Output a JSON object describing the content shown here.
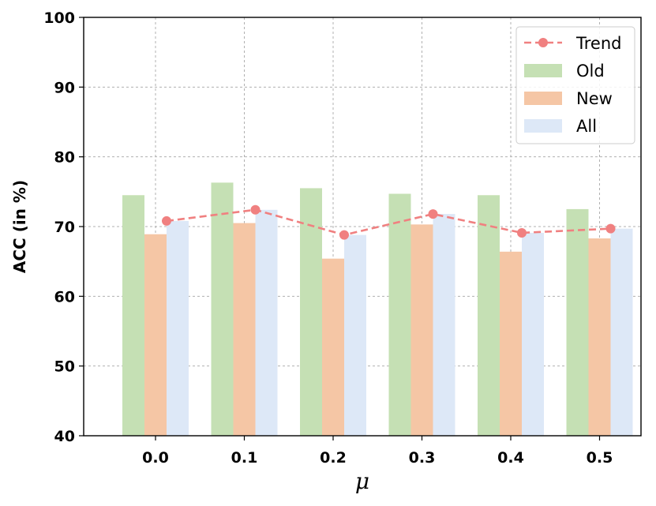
{
  "chart_data": {
    "type": "bar",
    "title": "",
    "xlabel": "μ",
    "ylabel": "ACC (in %)",
    "ylim": [
      40,
      100
    ],
    "yticks": [
      "40",
      "50",
      "60",
      "70",
      "80",
      "90",
      "100"
    ],
    "categories": [
      "0.0",
      "0.1",
      "0.2",
      "0.3",
      "0.4",
      "0.5"
    ],
    "series": [
      {
        "name": "Old",
        "color": "#c5e0b4",
        "values": [
          74.5,
          76.3,
          75.5,
          74.7,
          74.5,
          72.5
        ]
      },
      {
        "name": "New",
        "color": "#f5c6a5",
        "values": [
          68.9,
          70.5,
          65.4,
          70.3,
          66.4,
          68.3
        ]
      },
      {
        "name": "All",
        "color": "#dde8f7",
        "values": [
          70.8,
          72.4,
          68.8,
          71.8,
          69.1,
          69.7
        ]
      }
    ],
    "line_series": {
      "name": "Trend",
      "color": "#f08080",
      "values": [
        70.8,
        72.4,
        68.8,
        71.8,
        69.1,
        69.7
      ]
    },
    "grid": true,
    "legend_position": "top-right"
  }
}
